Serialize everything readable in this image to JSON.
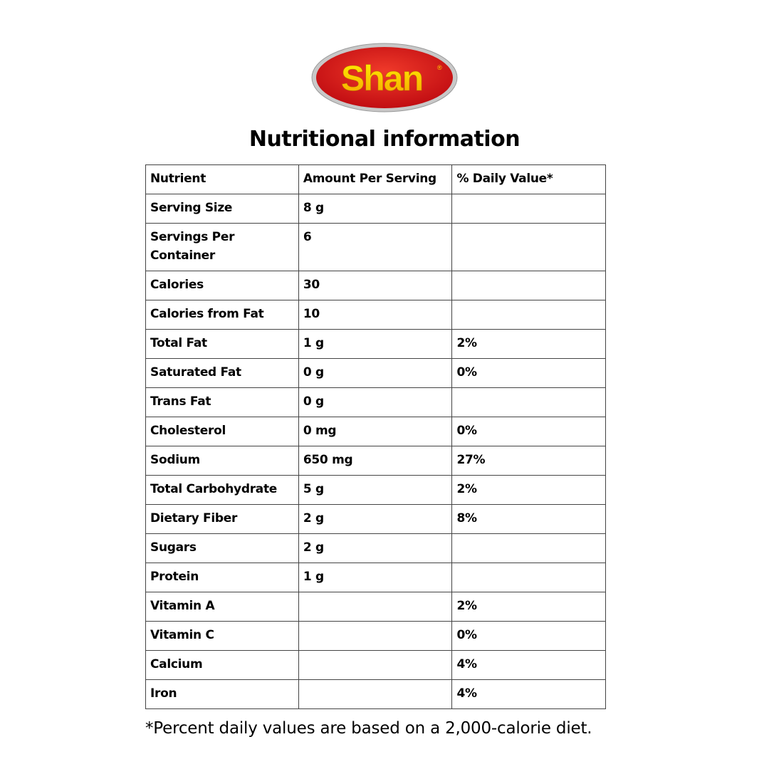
{
  "logo": {
    "text": "Shan",
    "colors": {
      "red": "#d9161b",
      "yellow": "#ffd400",
      "rim": "#b0b0b0"
    }
  },
  "title": "Nutritional information",
  "table": {
    "headers": [
      "Nutrient",
      "Amount Per Serving",
      "% Daily Value*"
    ],
    "rows": [
      [
        "Serving Size",
        "8 g",
        ""
      ],
      [
        "Servings Per Container",
        "6",
        ""
      ],
      [
        "Calories",
        "30",
        ""
      ],
      [
        "Calories from Fat",
        "10",
        ""
      ],
      [
        "Total Fat",
        "1 g",
        "2%"
      ],
      [
        "Saturated Fat",
        "0 g",
        "0%"
      ],
      [
        "Trans Fat",
        "0 g",
        ""
      ],
      [
        "Cholesterol",
        "0 mg",
        "0%"
      ],
      [
        "Sodium",
        "650 mg",
        "27%"
      ],
      [
        "Total Carbohydrate",
        "5 g",
        "2%"
      ],
      [
        "Dietary Fiber",
        "2 g",
        "8%"
      ],
      [
        "Sugars",
        "2 g",
        ""
      ],
      [
        "Protein",
        "1 g",
        ""
      ],
      [
        "Vitamin A",
        "",
        "2%"
      ],
      [
        "Vitamin C",
        "",
        "0%"
      ],
      [
        "Calcium",
        "",
        "4%"
      ],
      [
        "Iron",
        "",
        "4%"
      ]
    ]
  },
  "footer": "*Percent daily values are based on a 2,000-calorie diet."
}
